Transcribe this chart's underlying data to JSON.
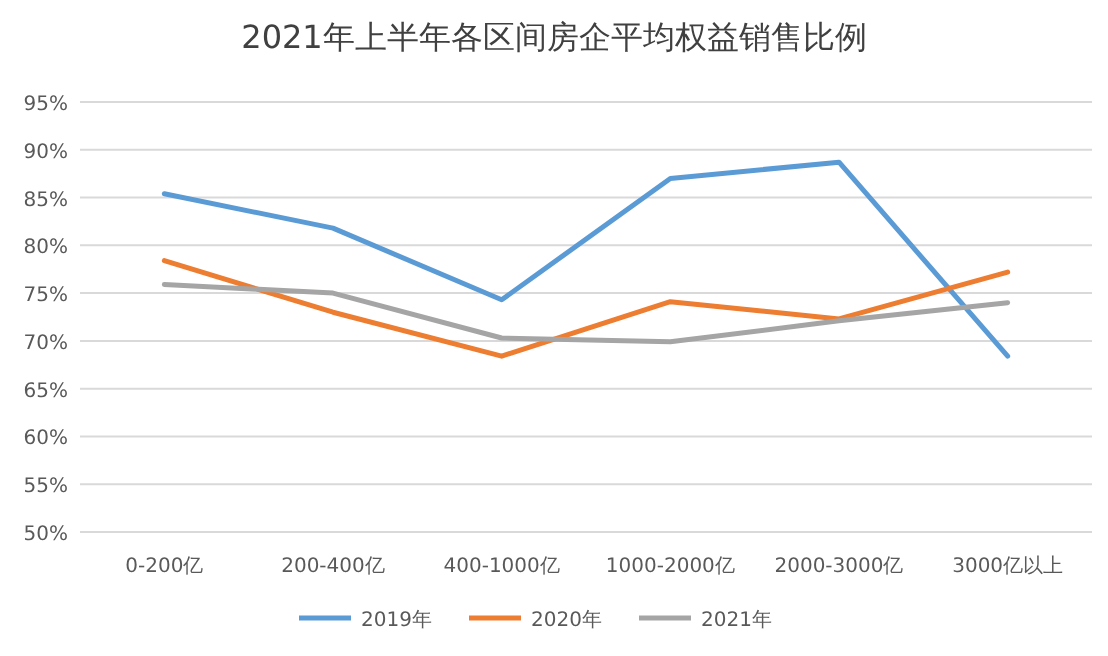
{
  "chart_data": {
    "type": "line",
    "title": "2021年上半年各区间房企平均权益销售比例",
    "categories": [
      "0-200亿",
      "200-400亿",
      "400-1000亿",
      "1000-2000亿",
      "2000-3000亿",
      "3000亿以上"
    ],
    "series": [
      {
        "name": "2019年",
        "color": "#5b9bd5",
        "values": [
          85.4,
          81.8,
          74.3,
          87.0,
          88.7,
          68.4
        ]
      },
      {
        "name": "2020年",
        "color": "#ed7d31",
        "values": [
          78.4,
          73.0,
          68.4,
          74.1,
          72.3,
          77.2
        ]
      },
      {
        "name": "2021年",
        "color": "#a5a5a5",
        "values": [
          75.9,
          75.0,
          70.3,
          69.9,
          72.1,
          74.0
        ]
      }
    ],
    "ylim": [
      50,
      95
    ],
    "yticks": [
      {
        "value": 50,
        "label": "50%"
      },
      {
        "value": 55,
        "label": "55%"
      },
      {
        "value": 60,
        "label": "60%"
      },
      {
        "value": 65,
        "label": "65%"
      },
      {
        "value": 70,
        "label": "70%"
      },
      {
        "value": 75,
        "label": "75%"
      },
      {
        "value": 80,
        "label": "80%"
      },
      {
        "value": 85,
        "label": "85%"
      },
      {
        "value": 90,
        "label": "90%"
      },
      {
        "value": 95,
        "label": "95%"
      }
    ],
    "grid": "y",
    "legend": "bottom",
    "marker": "none",
    "line_style": "solid"
  }
}
